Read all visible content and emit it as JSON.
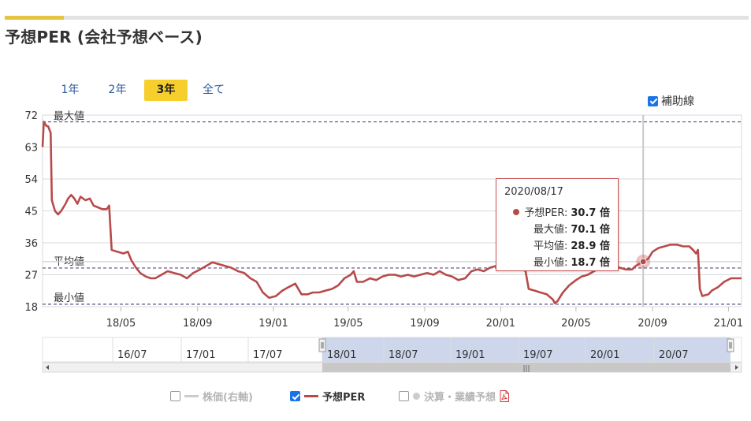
{
  "title": "予想PER (会社予想ベース)",
  "period_buttons": [
    {
      "label": "1年",
      "active": false
    },
    {
      "label": "2年",
      "active": false
    },
    {
      "label": "3年",
      "active": true
    },
    {
      "label": "全て",
      "active": false
    }
  ],
  "aux_toggle": {
    "label": "補助線",
    "checked": true
  },
  "tooltip": {
    "date": "2020/08/17",
    "rows": [
      {
        "label": "予想PER:",
        "value": "30.7 倍"
      },
      {
        "label": "最大値:",
        "value": "70.1 倍"
      },
      {
        "label": "平均値:",
        "value": "28.9 倍"
      },
      {
        "label": "最小値:",
        "value": "18.7 倍"
      }
    ]
  },
  "legend": [
    {
      "label": "株価(右軸)",
      "checked": false
    },
    {
      "label": "予想PER",
      "checked": true
    },
    {
      "label": "決算・業績予想",
      "checked": false,
      "icon": "pdf-icon"
    }
  ],
  "colors": {
    "series": "#b84a4a",
    "accent": "#f7cf2c",
    "ref_line": "#5b4a8a",
    "navigator_fill": "#cdd6ea"
  },
  "chart_data": {
    "type": "line",
    "ylim": [
      18,
      72
    ],
    "yticks": [
      "18",
      "27",
      "36",
      "45",
      "54",
      "63",
      "72"
    ],
    "x_range": [
      "2017-12-26",
      "2021-01-22"
    ],
    "xticks": [
      {
        "date": "2018-05-01",
        "label": "18/05"
      },
      {
        "date": "2018-09-01",
        "label": "18/09"
      },
      {
        "date": "2019-01-01",
        "label": "19/01"
      },
      {
        "date": "2019-05-01",
        "label": "19/05"
      },
      {
        "date": "2019-09-01",
        "label": "19/09"
      },
      {
        "date": "2020-01-01",
        "label": "20/01"
      },
      {
        "date": "2020-05-01",
        "label": "20/05"
      },
      {
        "date": "2020-09-01",
        "label": "20/09"
      },
      {
        "date": "2021-01-01",
        "label": "21/01"
      }
    ],
    "reference_lines": [
      {
        "label": "最大値",
        "value": 70.1
      },
      {
        "label": "平均値",
        "value": 28.9
      },
      {
        "label": "最小値",
        "value": 18.7
      }
    ],
    "highlight": {
      "date": "2020-08-17",
      "value": 30.7
    },
    "series": [
      {
        "name": "予想PER",
        "points": [
          [
            "2017-12-26",
            63
          ],
          [
            "2017-12-28",
            70.1
          ],
          [
            "2018-01-01",
            69
          ],
          [
            "2018-01-04",
            68.8
          ],
          [
            "2018-01-08",
            67
          ],
          [
            "2018-01-10",
            48
          ],
          [
            "2018-01-15",
            45
          ],
          [
            "2018-01-20",
            44
          ],
          [
            "2018-01-25",
            45
          ],
          [
            "2018-02-01",
            47
          ],
          [
            "2018-02-05",
            48.5
          ],
          [
            "2018-02-10",
            49.5
          ],
          [
            "2018-02-15",
            48.5
          ],
          [
            "2018-02-20",
            47
          ],
          [
            "2018-02-25",
            49
          ],
          [
            "2018-03-05",
            48
          ],
          [
            "2018-03-12",
            48.5
          ],
          [
            "2018-03-18",
            46.5
          ],
          [
            "2018-03-25",
            46
          ],
          [
            "2018-04-01",
            45.5
          ],
          [
            "2018-04-08",
            45.5
          ],
          [
            "2018-04-12",
            46.5
          ],
          [
            "2018-04-16",
            34
          ],
          [
            "2018-04-25",
            33.5
          ],
          [
            "2018-05-05",
            33
          ],
          [
            "2018-05-12",
            33.5
          ],
          [
            "2018-05-18",
            31
          ],
          [
            "2018-05-25",
            29
          ],
          [
            "2018-06-01",
            27.5
          ],
          [
            "2018-06-10",
            26.5
          ],
          [
            "2018-06-18",
            26
          ],
          [
            "2018-06-25",
            26
          ],
          [
            "2018-07-05",
            27
          ],
          [
            "2018-07-15",
            28
          ],
          [
            "2018-07-25",
            27.5
          ],
          [
            "2018-08-05",
            27
          ],
          [
            "2018-08-15",
            26
          ],
          [
            "2018-08-25",
            27.5
          ],
          [
            "2018-09-05",
            28.5
          ],
          [
            "2018-09-15",
            29.5
          ],
          [
            "2018-09-25",
            30.5
          ],
          [
            "2018-10-05",
            30
          ],
          [
            "2018-10-15",
            29.5
          ],
          [
            "2018-10-25",
            29
          ],
          [
            "2018-11-05",
            28
          ],
          [
            "2018-11-15",
            27.5
          ],
          [
            "2018-11-25",
            26
          ],
          [
            "2018-12-05",
            25
          ],
          [
            "2018-12-15",
            22
          ],
          [
            "2018-12-25",
            20.5
          ],
          [
            "2019-01-05",
            21
          ],
          [
            "2019-01-15",
            22.5
          ],
          [
            "2019-01-25",
            23.5
          ],
          [
            "2019-02-05",
            24.5
          ],
          [
            "2019-02-15",
            21.5
          ],
          [
            "2019-02-25",
            21.5
          ],
          [
            "2019-03-05",
            22
          ],
          [
            "2019-03-15",
            22
          ],
          [
            "2019-03-25",
            22.5
          ],
          [
            "2019-04-05",
            23
          ],
          [
            "2019-04-15",
            24
          ],
          [
            "2019-04-25",
            26
          ],
          [
            "2019-05-05",
            27
          ],
          [
            "2019-05-10",
            28
          ],
          [
            "2019-05-15",
            25
          ],
          [
            "2019-05-25",
            25
          ],
          [
            "2019-06-05",
            26
          ],
          [
            "2019-06-15",
            25.5
          ],
          [
            "2019-06-25",
            26.5
          ],
          [
            "2019-07-05",
            27
          ],
          [
            "2019-07-15",
            27
          ],
          [
            "2019-07-25",
            26.5
          ],
          [
            "2019-08-05",
            27
          ],
          [
            "2019-08-15",
            26.5
          ],
          [
            "2019-08-25",
            27
          ],
          [
            "2019-09-05",
            27.5
          ],
          [
            "2019-09-15",
            27
          ],
          [
            "2019-09-25",
            28
          ],
          [
            "2019-10-05",
            27
          ],
          [
            "2019-10-15",
            26.5
          ],
          [
            "2019-10-25",
            25.5
          ],
          [
            "2019-11-05",
            26
          ],
          [
            "2019-11-15",
            28
          ],
          [
            "2019-11-25",
            28.5
          ],
          [
            "2019-12-05",
            28
          ],
          [
            "2019-12-15",
            29
          ],
          [
            "2019-12-25",
            29.5
          ],
          [
            "2020-01-05",
            29
          ],
          [
            "2020-01-15",
            29.5
          ],
          [
            "2020-01-25",
            29
          ],
          [
            "2020-02-05",
            28.5
          ],
          [
            "2020-02-10",
            28
          ],
          [
            "2020-02-15",
            23
          ],
          [
            "2020-02-25",
            22.5
          ],
          [
            "2020-03-05",
            22
          ],
          [
            "2020-03-15",
            21.5
          ],
          [
            "2020-03-25",
            20
          ],
          [
            "2020-03-28",
            19
          ],
          [
            "2020-04-01",
            19.5
          ],
          [
            "2020-04-10",
            22
          ],
          [
            "2020-04-20",
            24
          ],
          [
            "2020-05-01",
            25.5
          ],
          [
            "2020-05-10",
            26.5
          ],
          [
            "2020-05-20",
            27
          ],
          [
            "2020-05-30",
            28
          ],
          [
            "2020-06-10",
            29
          ],
          [
            "2020-06-20",
            29.5
          ],
          [
            "2020-06-30",
            29.5
          ],
          [
            "2020-07-10",
            29
          ],
          [
            "2020-07-20",
            28.5
          ],
          [
            "2020-07-30",
            28.5
          ],
          [
            "2020-08-05",
            29.5
          ],
          [
            "2020-08-10",
            30
          ],
          [
            "2020-08-17",
            30.7
          ],
          [
            "2020-08-25",
            31.5
          ],
          [
            "2020-09-01",
            33.5
          ],
          [
            "2020-09-10",
            34.5
          ],
          [
            "2020-09-20",
            35
          ],
          [
            "2020-09-30",
            35.5
          ],
          [
            "2020-10-10",
            35.5
          ],
          [
            "2020-10-20",
            35
          ],
          [
            "2020-10-30",
            35
          ],
          [
            "2020-11-05",
            34
          ],
          [
            "2020-11-10",
            33
          ],
          [
            "2020-11-13",
            34
          ],
          [
            "2020-11-16",
            23
          ],
          [
            "2020-11-20",
            21
          ],
          [
            "2020-11-30",
            21.5
          ],
          [
            "2020-12-05",
            22.5
          ],
          [
            "2020-12-15",
            23.5
          ],
          [
            "2020-12-25",
            25
          ],
          [
            "2021-01-05",
            26
          ],
          [
            "2021-01-15",
            26
          ],
          [
            "2021-01-22",
            26
          ]
        ]
      }
    ],
    "navigator": {
      "labels": [
        "16/07",
        "17/01",
        "17/07",
        "18/01",
        "18/07",
        "19/01",
        "19/07",
        "20/01",
        "20/07"
      ]
    }
  }
}
